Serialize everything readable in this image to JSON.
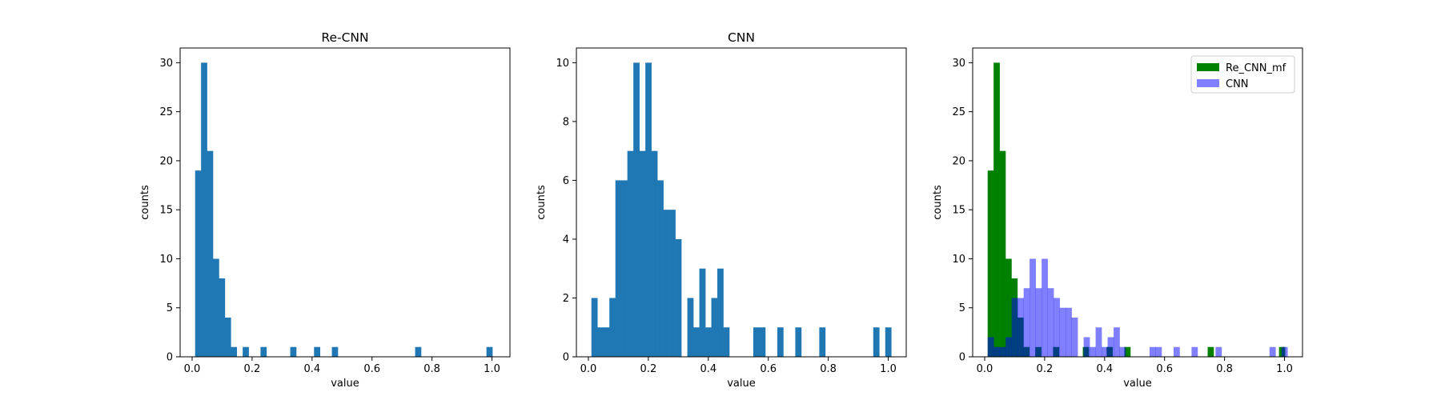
{
  "chart_data": [
    {
      "type": "histogram",
      "title": "Re-CNN",
      "xlabel": "value",
      "ylabel": "counts",
      "xlim": [
        -0.04,
        1.06
      ],
      "ylim": [
        0,
        31.5
      ],
      "xticks": [
        "0.0",
        "0.2",
        "0.4",
        "0.6",
        "0.8",
        "1.0"
      ],
      "yticks": [
        "0",
        "5",
        "10",
        "15",
        "20",
        "25",
        "30"
      ],
      "grid": false,
      "series": [
        {
          "color": "#1f77b4",
          "opacity": 1,
          "bin_start": 0.01,
          "bin_width": 0.01983,
          "counts": [
            19,
            30,
            21,
            10,
            8,
            4,
            1,
            0,
            1,
            0,
            0,
            1,
            0,
            0,
            0,
            0,
            1,
            0,
            0,
            0,
            1,
            0,
            0,
            1,
            0,
            0,
            0,
            0,
            0,
            0,
            0,
            0,
            0,
            0,
            0,
            0,
            0,
            1,
            0,
            0,
            0,
            0,
            0,
            0,
            0,
            0,
            0,
            0,
            0,
            1
          ]
        }
      ]
    },
    {
      "type": "histogram",
      "title": "CNN",
      "xlabel": "value",
      "ylabel": "counts",
      "xlim": [
        -0.04,
        1.06
      ],
      "ylim": [
        0,
        10.5
      ],
      "xticks": [
        "0.0",
        "0.2",
        "0.4",
        "0.6",
        "0.8",
        "1.0"
      ],
      "yticks": [
        "0",
        "2",
        "4",
        "6",
        "8",
        "10"
      ],
      "grid": false,
      "series": [
        {
          "color": "#1f77b4",
          "opacity": 1,
          "bin_start": 0.01,
          "bin_width": 0.02,
          "counts": [
            2,
            1,
            1,
            2,
            6,
            6,
            7,
            10,
            7,
            10,
            7,
            6,
            5,
            5,
            4,
            0,
            2,
            1,
            3,
            1,
            2,
            3,
            1,
            0,
            0,
            0,
            0,
            1,
            1,
            0,
            0,
            1,
            0,
            0,
            1,
            0,
            0,
            0,
            1,
            0,
            0,
            0,
            0,
            0,
            0,
            0,
            0,
            1,
            0,
            1
          ]
        }
      ]
    },
    {
      "type": "histogram",
      "title": "",
      "xlabel": "value",
      "ylabel": "counts",
      "xlim": [
        -0.04,
        1.06
      ],
      "ylim": [
        0,
        31.5
      ],
      "xticks": [
        "0.0",
        "0.2",
        "0.4",
        "0.6",
        "0.8",
        "1.0"
      ],
      "yticks": [
        "0",
        "5",
        "10",
        "15",
        "20",
        "25",
        "30"
      ],
      "grid": false,
      "legend_position": "top-right",
      "series": [
        {
          "name": "Re_CNN_mf",
          "color": "#008000",
          "opacity": 1,
          "bin_start": 0.01,
          "bin_width": 0.01983,
          "counts": [
            19,
            30,
            21,
            10,
            8,
            4,
            1,
            0,
            1,
            0,
            0,
            1,
            0,
            0,
            0,
            0,
            1,
            0,
            0,
            0,
            1,
            0,
            0,
            1,
            0,
            0,
            0,
            0,
            0,
            0,
            0,
            0,
            0,
            0,
            0,
            0,
            0,
            1,
            0,
            0,
            0,
            0,
            0,
            0,
            0,
            0,
            0,
            0,
            0,
            1
          ]
        },
        {
          "name": "CNN",
          "color": "#0000ff",
          "opacity": 0.5,
          "bin_start": 0.01,
          "bin_width": 0.02,
          "counts": [
            2,
            1,
            1,
            2,
            6,
            6,
            7,
            10,
            7,
            10,
            7,
            6,
            5,
            5,
            4,
            0,
            2,
            1,
            3,
            1,
            2,
            3,
            1,
            0,
            0,
            0,
            0,
            1,
            1,
            0,
            0,
            1,
            0,
            0,
            1,
            0,
            0,
            0,
            1,
            0,
            0,
            0,
            0,
            0,
            0,
            0,
            0,
            1,
            0,
            1
          ]
        }
      ]
    }
  ]
}
